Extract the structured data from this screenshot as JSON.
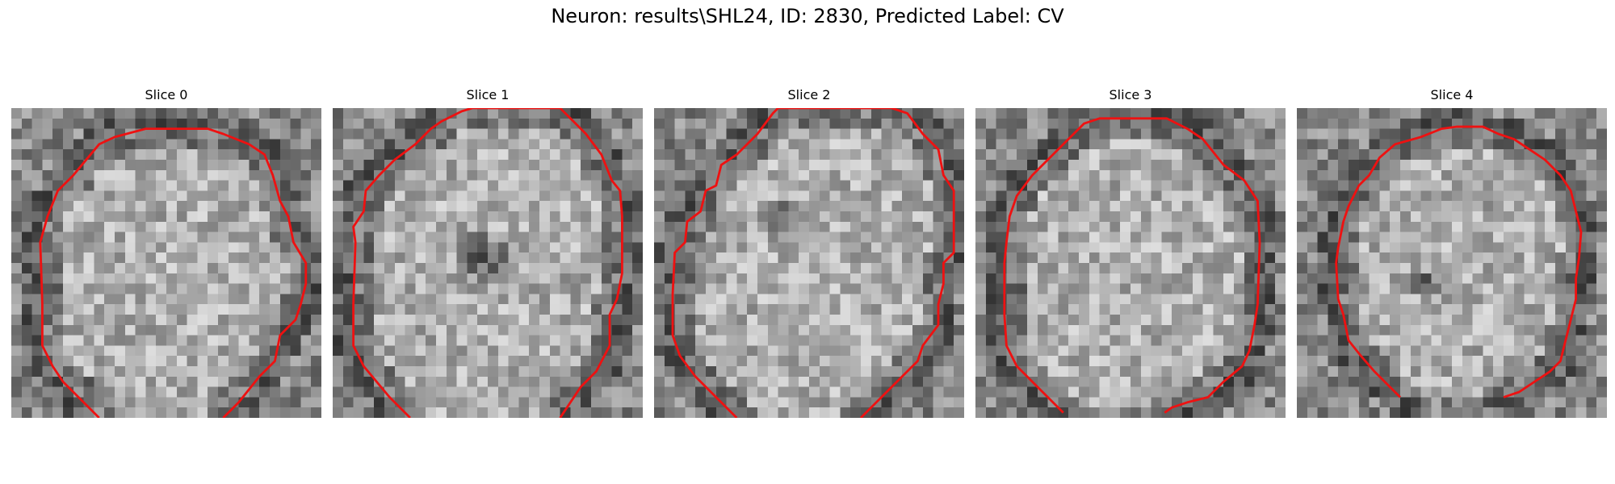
{
  "figure": {
    "title": "Neuron: results\\SHL24, ID: 2830, Predicted Label: CV"
  },
  "panels": [
    {
      "title": "Slice 0",
      "contour_color": "#ee1111",
      "contour": [
        [
          8.5,
          30
        ],
        [
          6,
          27.5
        ],
        [
          5,
          26.5
        ],
        [
          4,
          25
        ],
        [
          3,
          23
        ],
        [
          3,
          19
        ],
        [
          2.8,
          13
        ],
        [
          3.5,
          10.5
        ],
        [
          4.5,
          8
        ],
        [
          6,
          6.5
        ],
        [
          8.5,
          3.5
        ],
        [
          10,
          2.8
        ],
        [
          13,
          2
        ],
        [
          15,
          2
        ],
        [
          19,
          2
        ],
        [
          20.5,
          2.5
        ],
        [
          23,
          3.5
        ],
        [
          24.5,
          4.5
        ],
        [
          25.3,
          6.5
        ],
        [
          26,
          9
        ],
        [
          26.8,
          10.5
        ],
        [
          27.3,
          13
        ],
        [
          28.5,
          15
        ],
        [
          28.5,
          17
        ],
        [
          28,
          19
        ],
        [
          27.5,
          20.5
        ],
        [
          26,
          22
        ],
        [
          25.5,
          24.5
        ],
        [
          24,
          26
        ],
        [
          22,
          28.5
        ],
        [
          20.5,
          30
        ]
      ],
      "dark_spot": null
    },
    {
      "title": "Slice 1",
      "contour_color": "#ee1111",
      "contour": [
        [
          7.5,
          30
        ],
        [
          5.5,
          28
        ],
        [
          3,
          25
        ],
        [
          2,
          23
        ],
        [
          2,
          19
        ],
        [
          2.2,
          13
        ],
        [
          2,
          11.5
        ],
        [
          3,
          10
        ],
        [
          3.2,
          8
        ],
        [
          4.5,
          6.5
        ],
        [
          6,
          5
        ],
        [
          8,
          3.5
        ],
        [
          9.5,
          2
        ],
        [
          10.5,
          1.3
        ],
        [
          12.5,
          0.3
        ],
        [
          13.5,
          0
        ],
        [
          22,
          0
        ],
        [
          23,
          1
        ],
        [
          24.5,
          2.5
        ],
        [
          26,
          4.5
        ],
        [
          27,
          7
        ],
        [
          27.8,
          8
        ],
        [
          28,
          10.5
        ],
        [
          28,
          13
        ],
        [
          28,
          16
        ],
        [
          27.5,
          18.5
        ],
        [
          26.8,
          20
        ],
        [
          26.8,
          23
        ],
        [
          25.5,
          25.5
        ],
        [
          24,
          27
        ],
        [
          22,
          30
        ]
      ],
      "dark_spot": {
        "cx": 14.5,
        "cy": 14.5,
        "r": 3.2
      }
    },
    {
      "title": "Slice 2",
      "contour_color": "#ee1111",
      "contour": [
        [
          8,
          30
        ],
        [
          6.5,
          28.5
        ],
        [
          4,
          26
        ],
        [
          2.5,
          24
        ],
        [
          1.8,
          22
        ],
        [
          1.8,
          18
        ],
        [
          2,
          14
        ],
        [
          3,
          13
        ],
        [
          3.2,
          11
        ],
        [
          4.5,
          10
        ],
        [
          5,
          8
        ],
        [
          6,
          7.5
        ],
        [
          6.5,
          5.5
        ],
        [
          8,
          4.5
        ],
        [
          10,
          2.5
        ],
        [
          11.5,
          0.5
        ],
        [
          12,
          0
        ],
        [
          23,
          0
        ],
        [
          24.5,
          0.5
        ],
        [
          26,
          2.5
        ],
        [
          27.5,
          4
        ],
        [
          28,
          6.5
        ],
        [
          29,
          8
        ],
        [
          29,
          14
        ],
        [
          28,
          15
        ],
        [
          28,
          17
        ],
        [
          27.5,
          19
        ],
        [
          27.5,
          21
        ],
        [
          26,
          23
        ],
        [
          25.5,
          24.5
        ],
        [
          24,
          26
        ],
        [
          22,
          28
        ],
        [
          20.5,
          29.5
        ],
        [
          20,
          30
        ]
      ],
      "dark_spot": {
        "cx": 12.5,
        "cy": 11,
        "r": 2.5
      }
    },
    {
      "title": "Slice 3",
      "contour_color": "#ee1111",
      "contour": [
        [
          8.5,
          29.5
        ],
        [
          6,
          27
        ],
        [
          4,
          25
        ],
        [
          3,
          23
        ],
        [
          2.8,
          20
        ],
        [
          2.8,
          15
        ],
        [
          3,
          13
        ],
        [
          3.3,
          10.5
        ],
        [
          4,
          8.5
        ],
        [
          5.5,
          6.5
        ],
        [
          7,
          5
        ],
        [
          9,
          3
        ],
        [
          10.5,
          1.5
        ],
        [
          12,
          1
        ],
        [
          15,
          1
        ],
        [
          18.5,
          1
        ],
        [
          20.5,
          2
        ],
        [
          22,
          3
        ],
        [
          24,
          5.5
        ],
        [
          26,
          7
        ],
        [
          27.3,
          9
        ],
        [
          27.5,
          13
        ],
        [
          27.3,
          19
        ],
        [
          27,
          21
        ],
        [
          26.5,
          23.5
        ],
        [
          25.8,
          25
        ],
        [
          24,
          26.5
        ],
        [
          22.5,
          28
        ],
        [
          20.5,
          28.5
        ],
        [
          19,
          29
        ],
        [
          18.3,
          29.5
        ]
      ],
      "dark_spot": null
    },
    {
      "title": "Slice 4",
      "contour_color": "#ee1111",
      "contour": [
        [
          10,
          28
        ],
        [
          9,
          27
        ],
        [
          7.5,
          25.5
        ],
        [
          6.2,
          24
        ],
        [
          5,
          22.5
        ],
        [
          4.5,
          20
        ],
        [
          4,
          18.5
        ],
        [
          3.8,
          15
        ],
        [
          4,
          13.5
        ],
        [
          4.5,
          11
        ],
        [
          5,
          9.5
        ],
        [
          6,
          7.5
        ],
        [
          7,
          6.5
        ],
        [
          8,
          4.8
        ],
        [
          9.5,
          3.5
        ],
        [
          12,
          2.8
        ],
        [
          14,
          2
        ],
        [
          15.5,
          1.8
        ],
        [
          18,
          1.8
        ],
        [
          19.5,
          2.5
        ],
        [
          21,
          3
        ],
        [
          22.5,
          4
        ],
        [
          24,
          5
        ],
        [
          25.5,
          6.5
        ],
        [
          26.5,
          8
        ],
        [
          27,
          10
        ],
        [
          27.5,
          12
        ],
        [
          27.3,
          14.5
        ],
        [
          27,
          16.5
        ],
        [
          27,
          18.5
        ],
        [
          26.5,
          20.5
        ],
        [
          26,
          22.5
        ],
        [
          25.5,
          24.5
        ],
        [
          24.5,
          25.5
        ],
        [
          23,
          26.5
        ],
        [
          21.5,
          27.5
        ],
        [
          20,
          28
        ]
      ],
      "dark_spot": {
        "cx": 12.5,
        "cy": 17,
        "r": 1.9
      }
    }
  ]
}
